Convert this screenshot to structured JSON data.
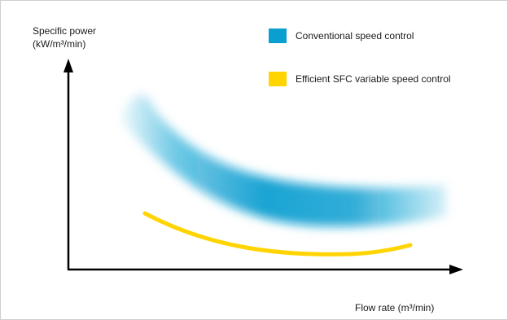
{
  "axes": {
    "y_label_line1": "Specific power",
    "y_label_line2": "(kW/m³/min)",
    "x_label": "Flow rate (m³/min)"
  },
  "legend": [
    {
      "label": "Conventional speed control",
      "color": "#0a9fd1"
    },
    {
      "label": "Efficient SFC variable speed control",
      "color": "#ffd400"
    }
  ],
  "chart_data": {
    "type": "line",
    "title": "",
    "xlabel": "Flow rate (m³/min)",
    "ylabel": "Specific power (kW/m³/min)",
    "axis_ticks": "none",
    "grid": false,
    "legend_position": "top-right",
    "series": [
      {
        "name": "Conventional speed control",
        "style": "band",
        "color": "#0a9fd1"
      },
      {
        "name": "Efficient SFC variable speed control",
        "style": "line",
        "color": "#ffd400"
      }
    ]
  }
}
